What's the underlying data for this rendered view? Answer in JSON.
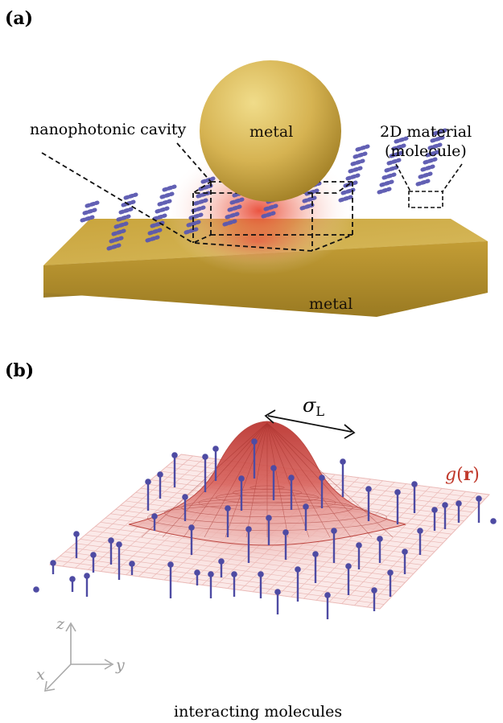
{
  "panel_a": {
    "label": "(a)",
    "cavity_label": "nanophotonic cavity",
    "sphere_label": "metal",
    "slab_label": "metal",
    "material_label_line1": "2D material",
    "material_label_line2": "(molecule)",
    "colors": {
      "gold": "#c9a53d",
      "field": "#e8412c",
      "molecule": "#5a58b0"
    }
  },
  "panel_b": {
    "label": "(b)",
    "width_symbol": "σ",
    "width_subscript": "L",
    "function_label_g": "g",
    "function_label_open": "(",
    "function_label_r": "r",
    "function_label_close": ")",
    "axis_z": "z",
    "axis_x": "x",
    "axis_y": "y",
    "caption": "interacting molecules",
    "colors": {
      "surface": "#d9534f",
      "grid": "#f6dede",
      "molecule": "#4e4ba3"
    }
  }
}
